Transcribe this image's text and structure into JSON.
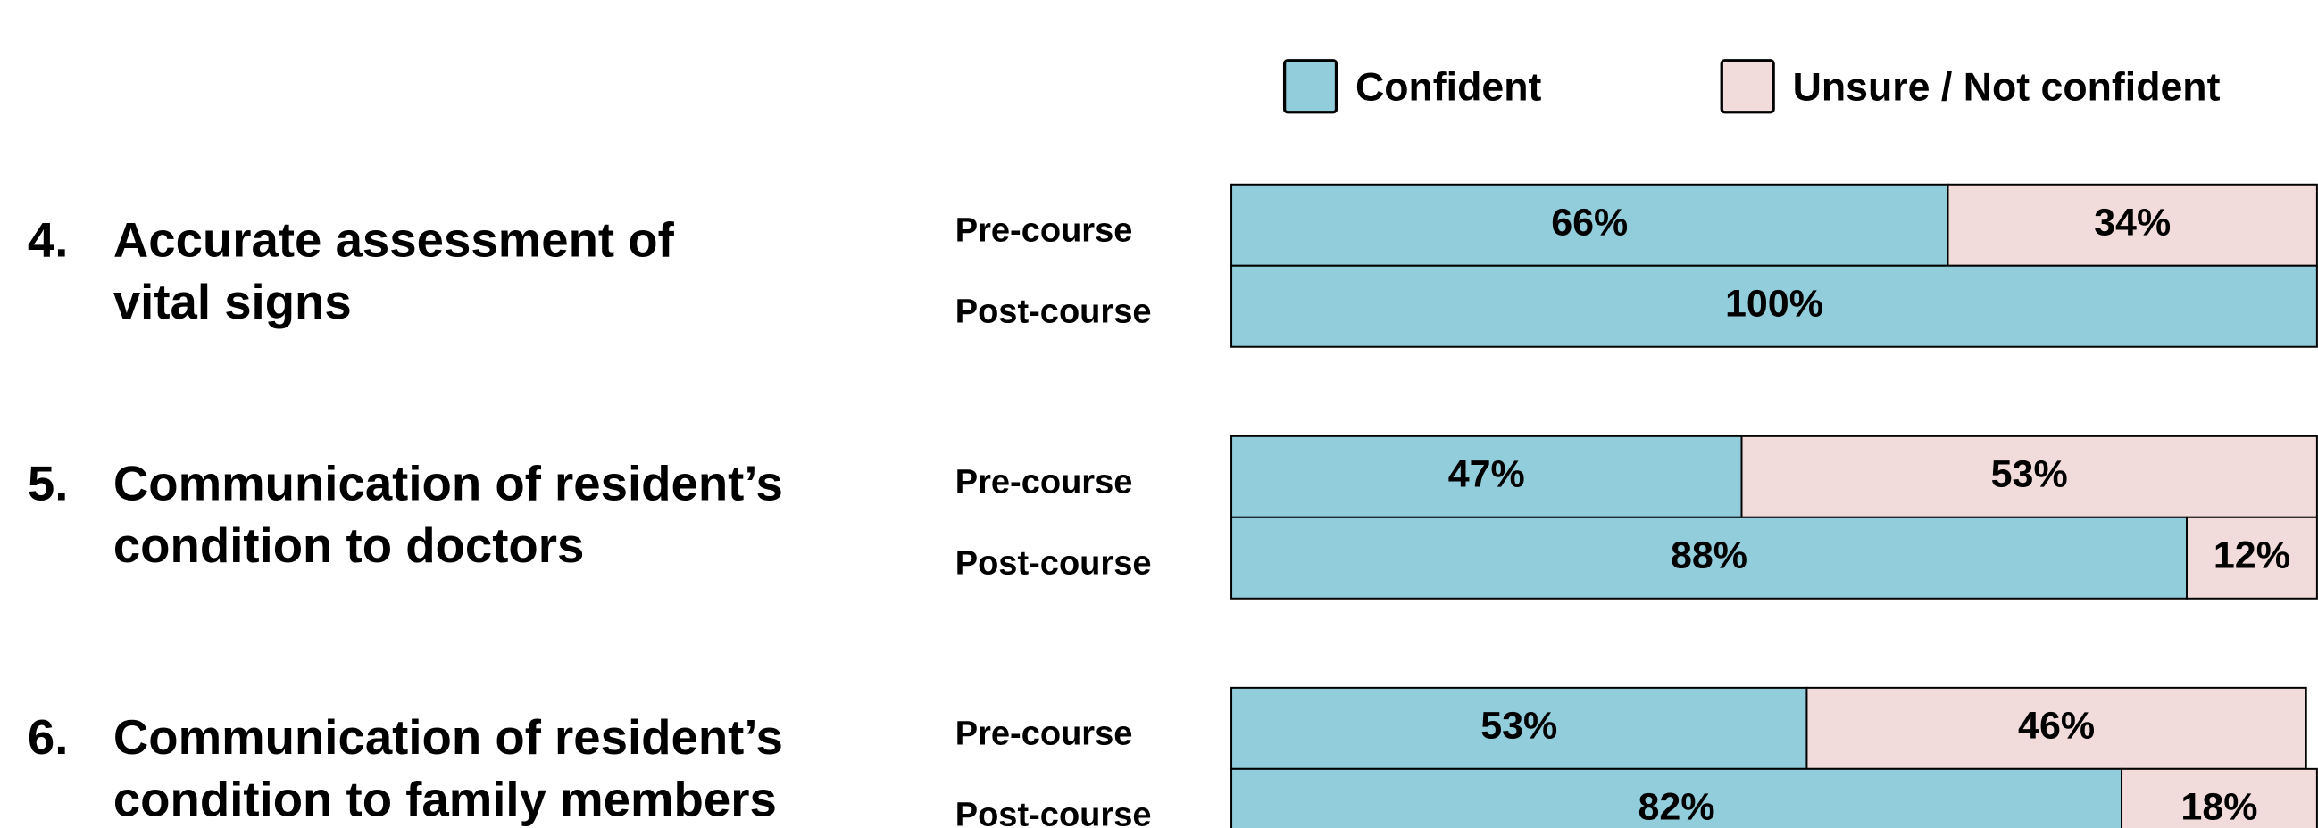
{
  "chart_data": {
    "type": "bar",
    "orientation": "horizontal",
    "stacked": true,
    "questions": [
      {
        "number": "4.",
        "lines": [
          "Accurate assessment of",
          "vital signs"
        ]
      },
      {
        "number": "5.",
        "lines": [
          "Communication of resident’s",
          "condition to doctors"
        ]
      },
      {
        "number": "6.",
        "lines": [
          "Communication of resident’s",
          "condition to family members"
        ]
      }
    ],
    "categories": [
      "Pre-course",
      "Post-course",
      "Pre-course",
      "Post-course",
      "Pre-course",
      "Post-course"
    ],
    "series": [
      {
        "name": "Confident",
        "color": "#92cddc",
        "values": [
          66,
          100,
          47,
          88,
          53,
          82
        ],
        "value_labels": [
          "66%",
          "100%",
          "47%",
          "88%",
          "53%",
          "82%"
        ]
      },
      {
        "name": "Unsure / Not confident",
        "color": "#f2dcdb",
        "values": [
          34,
          null,
          53,
          12,
          46,
          18
        ],
        "value_labels": [
          "34%",
          null,
          "53%",
          "12%",
          "46%",
          "18%"
        ]
      }
    ],
    "xlim": [
      0,
      100
    ],
    "legend": "top-right"
  }
}
